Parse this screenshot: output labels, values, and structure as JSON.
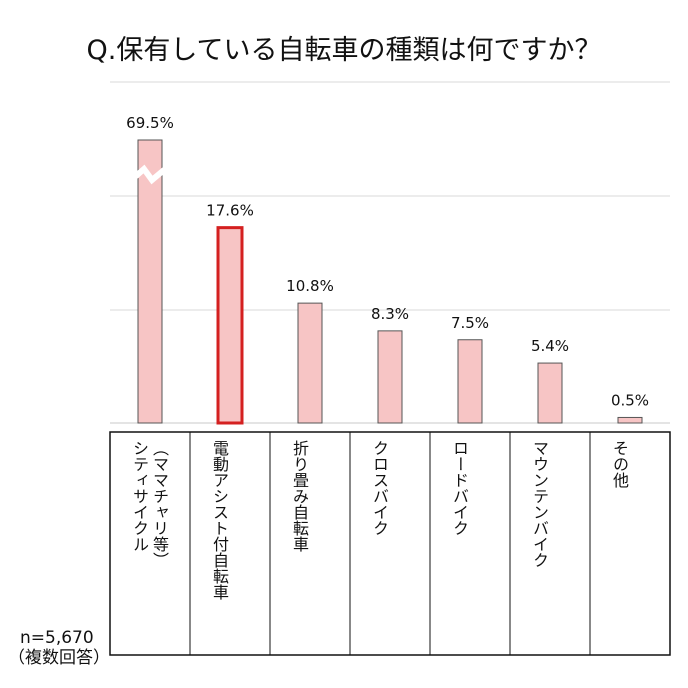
{
  "chart_data": {
    "type": "bar",
    "title": "Q.保有している自転車の種類は何ですか？",
    "categories": [
      "シティサイクル（ママチャリ等）",
      "電動アシスト付自転車",
      "折り畳み自転車",
      "クロスバイク",
      "ロードバイク",
      "マウンテンバイク",
      "その他"
    ],
    "category_lines": [
      [
        "シティサイクル",
        "（ママチャリ等）"
      ],
      [
        "電動アシスト付自転車"
      ],
      [
        "折り畳み自転車"
      ],
      [
        "クロスバイク"
      ],
      [
        "ロードバイク"
      ],
      [
        "マウンテンバイク"
      ],
      [
        "その他"
      ]
    ],
    "values": [
      69.5,
      17.6,
      10.8,
      8.3,
      7.5,
      5.4,
      0.5
    ],
    "data_labels": [
      "69.5%",
      "17.6%",
      "10.8%",
      "8.3%",
      "7.5%",
      "5.4%",
      "0.5%"
    ],
    "highlight_index": 1,
    "axis_break_on_index": 0,
    "y_unit": "%",
    "grid": true,
    "colors": {
      "bar_fill": "#f7c5c5",
      "bar_stroke": "#555555",
      "highlight_stroke": "#d42020",
      "grid": "#d9d9d9"
    }
  },
  "note": {
    "sample": "n=5,670",
    "multiple": "（複数回答）"
  }
}
